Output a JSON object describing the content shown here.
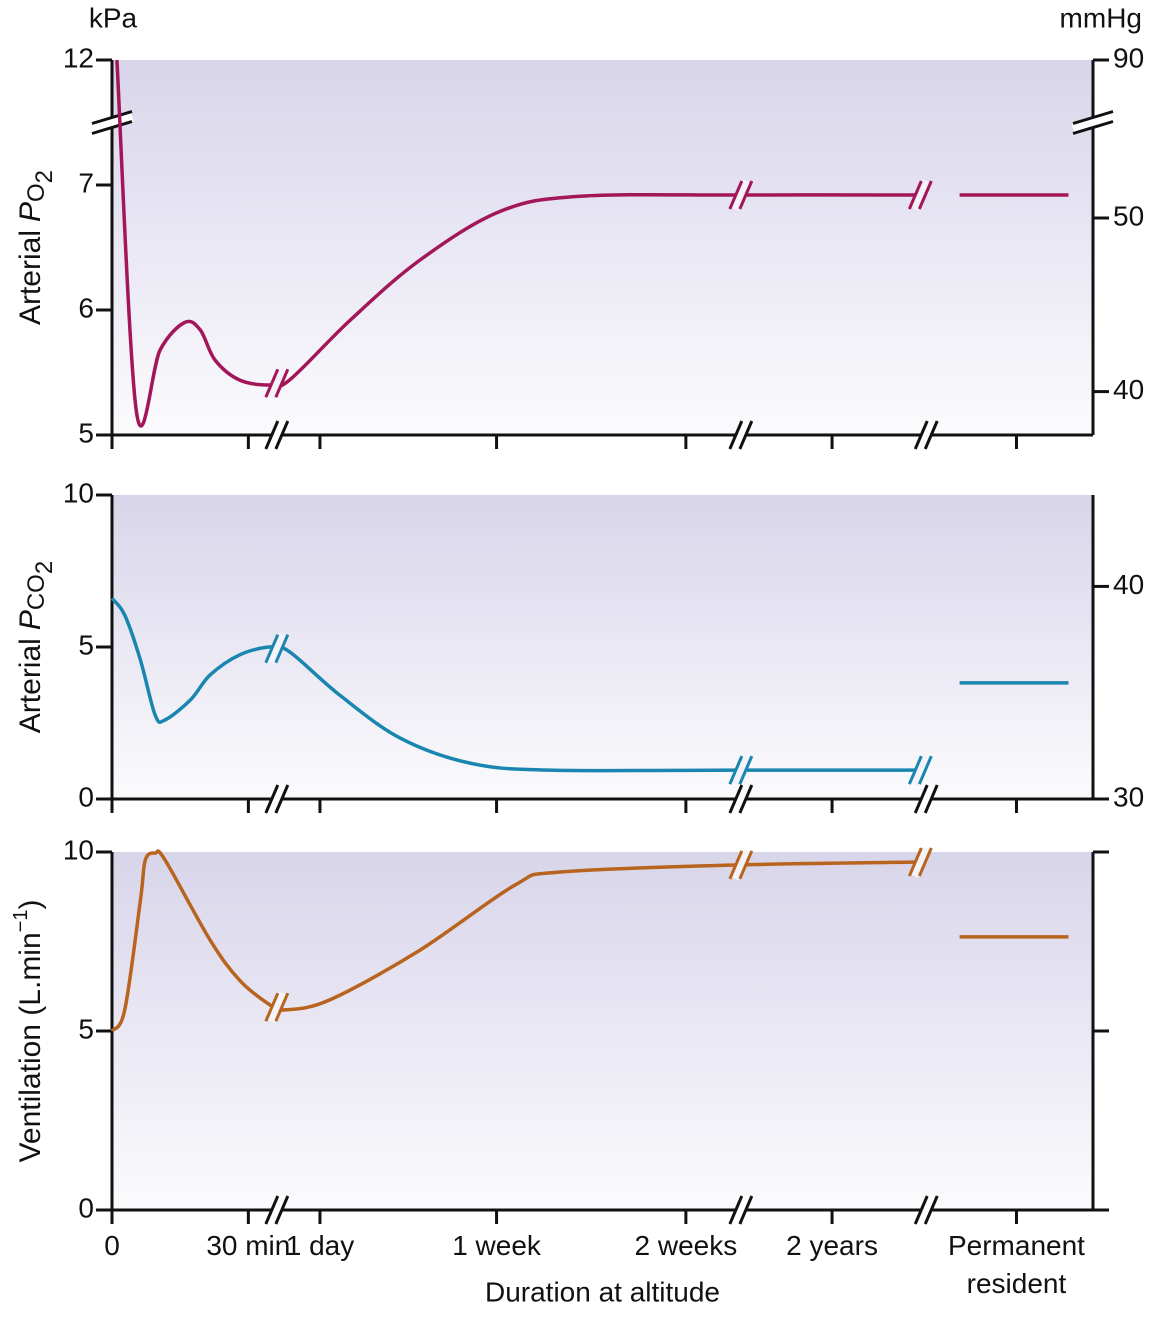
{
  "chart_data": [
    {
      "type": "line",
      "y_unit": "kPa",
      "y2_unit": "mmHg",
      "ylabel_parts": [
        {
          "text": "Arterial"
        },
        {
          "text": "P",
          "style": "italic"
        },
        {
          "text": "O",
          "style": "sub"
        },
        {
          "text": "2",
          "style": "sub2"
        }
      ],
      "xlim": [
        0,
        10
      ],
      "xbreaks": [
        1.68,
        6.41,
        8.3
      ],
      "ylim": [
        5,
        12
      ],
      "ybreak": [
        7.5,
        11.5
      ],
      "yticks": [
        5,
        6,
        7,
        12
      ],
      "y2lim": [
        37.5,
        90
      ],
      "y2break": [
        55.5,
        86.4
      ],
      "y2ticks": [
        40,
        50,
        90
      ],
      "color": "#a3165a",
      "x": [
        0.05,
        0.25,
        0.49,
        0.74,
        0.9,
        1.05,
        1.3,
        1.61,
        1.81,
        2.43,
        3.14,
        3.96,
        4.77,
        6.4,
        8.24,
        null,
        8.64,
        9.75
      ],
      "values": [
        12,
        5.18,
        5.68,
        5.9,
        5.84,
        5.6,
        5.44,
        5.4,
        5.44,
        5.92,
        6.4,
        6.79,
        6.91,
        6.92,
        6.92,
        null,
        6.92,
        6.92
      ]
    },
    {
      "type": "line",
      "ylabel_parts": [
        {
          "text": "Arterial"
        },
        {
          "text": "P",
          "style": "italic"
        },
        {
          "text": "CO",
          "style": "sub"
        },
        {
          "text": "2",
          "style": "sub2"
        }
      ],
      "xlim": [
        0,
        10
      ],
      "xbreaks": [
        1.68,
        6.41,
        8.3
      ],
      "ylim": [
        0,
        10
      ],
      "yticks": [
        0,
        5,
        10
      ],
      "y2lim": [
        30,
        44.3
      ],
      "y2ticks": [
        30,
        40
      ],
      "color": "#1a86b0",
      "x": [
        0,
        0.13,
        0.29,
        0.44,
        0.54,
        0.8,
        1,
        1.3,
        1.61,
        1.81,
        2.32,
        2.94,
        3.65,
        4.46,
        6.4,
        8.24,
        null,
        8.64,
        9.75
      ],
      "values": [
        6.6,
        6.05,
        4.57,
        2.76,
        2.6,
        3.26,
        4.08,
        4.74,
        5.0,
        4.84,
        3.42,
        2.0,
        1.18,
        0.95,
        0.95,
        0.95,
        null,
        3.82,
        3.82
      ]
    },
    {
      "type": "line",
      "ylabel_parts": [
        {
          "text": "Ventilation (L.min"
        },
        {
          "text": "−1",
          "style": "sup"
        },
        {
          "text": ")"
        }
      ],
      "xlim": [
        0,
        10
      ],
      "xbreaks": [
        1.68,
        6.41,
        8.3
      ],
      "ylim": [
        0,
        10
      ],
      "yticks": [
        0,
        5,
        10
      ],
      "right_ticks": true,
      "xlabel": "Duration at altitude",
      "xticks": [
        0,
        {
          "value": 1.39,
          "label": "30 min"
        },
        {
          "value": 2.12,
          "label": "1 day"
        },
        {
          "value": 3.92,
          "label": "1 week"
        },
        {
          "value": 5.85,
          "label": "2 weeks"
        },
        {
          "value": 7.34,
          "label": "2 years"
        },
        {
          "value": 9.22,
          "label": "Permanent resident"
        }
      ],
      "color": "#b8641e",
      "x": [
        0,
        0.13,
        0.29,
        0.34,
        0.44,
        0.54,
        1,
        1.3,
        1.61,
        1.76,
        2.22,
        3.14,
        4.11,
        4.57,
        6.4,
        8.24,
        null,
        8.64,
        9.75
      ],
      "values": [
        5,
        5.59,
        8.66,
        9.78,
        9.97,
        9.78,
        7.54,
        6.42,
        5.73,
        5.59,
        5.87,
        7.26,
        9.08,
        9.44,
        9.64,
        9.72,
        null,
        7.63,
        7.63
      ]
    }
  ]
}
